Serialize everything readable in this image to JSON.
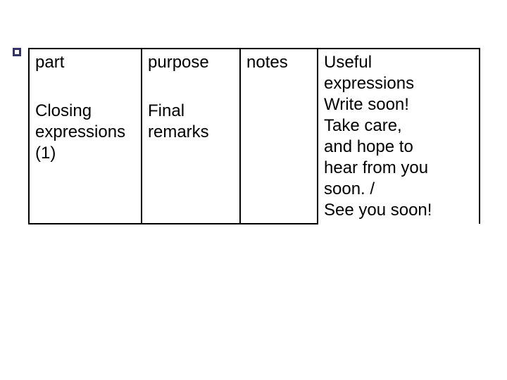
{
  "table": {
    "border_color": "#000000",
    "text_color": "#000000",
    "font_size_pt": 24,
    "columns": [
      "part",
      "purpose",
      "notes",
      ""
    ],
    "header": {
      "part": "part",
      "purpose": "purpose",
      "notes": "notes",
      "useful_l1": "Useful",
      "useful_l2": "expressions"
    },
    "row": {
      "part_l1": "Closing",
      "part_l2": "expressions",
      "part_l3": "(1)",
      "purpose_l1": "Final",
      "purpose_l2": "remarks",
      "notes": "",
      "expr_l1": "Write soon!",
      "expr_l2": "Take care,",
      "expr_l3": "and hope to",
      "expr_l4": "hear from you",
      "expr_l5": "soon. /",
      "expr_l6": "See you soon!"
    }
  },
  "background_color": "#ffffff"
}
